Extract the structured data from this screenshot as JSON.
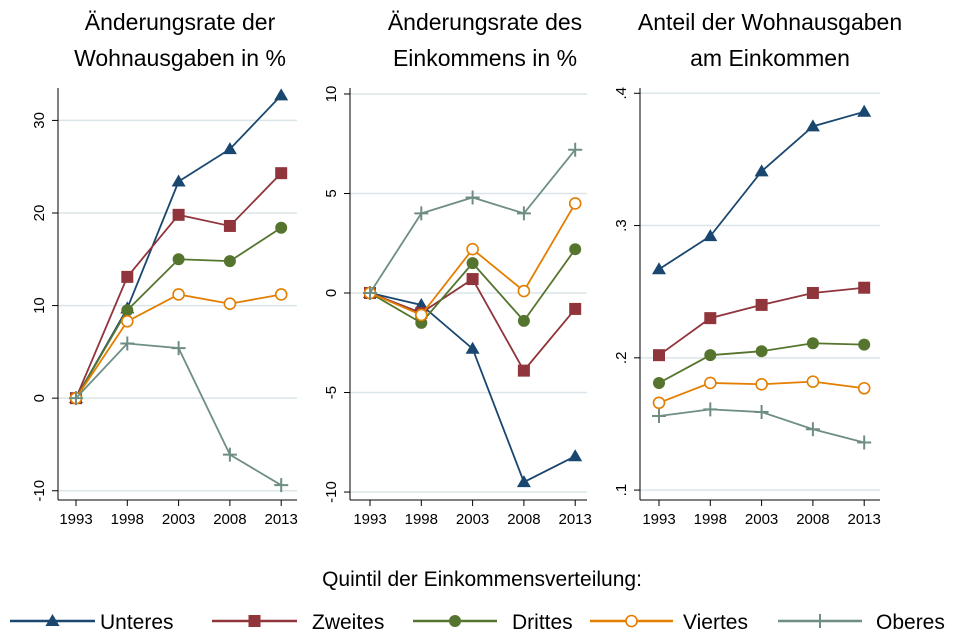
{
  "chart_data": [
    {
      "type": "line",
      "title": [
        "Änderungsrate der",
        "Wohnausgaben in %"
      ],
      "categories": [
        "1993",
        "1998",
        "2003",
        "2008",
        "2013"
      ],
      "ylim": [
        -11,
        33.5
      ],
      "yticks": [
        -10,
        0,
        10,
        20,
        30
      ],
      "grid": true,
      "series": [
        {
          "values": [
            0,
            9.7,
            23.4,
            26.9,
            32.7
          ]
        },
        {
          "values": [
            0,
            13.1,
            19.8,
            18.6,
            24.3
          ]
        },
        {
          "values": [
            0,
            9.5,
            15,
            14.8,
            18.4
          ]
        },
        {
          "values": [
            0,
            8.3,
            11.2,
            10.2,
            11.2
          ]
        },
        {
          "values": [
            0,
            5.9,
            5.4,
            -6.1,
            -9.4
          ]
        }
      ]
    },
    {
      "type": "line",
      "title": [
        "Änderungsrate des",
        "Einkommens in %"
      ],
      "categories": [
        "1993",
        "1998",
        "2003",
        "2008",
        "2013"
      ],
      "ylim": [
        -10.4,
        10.3
      ],
      "yticks": [
        -10,
        -5,
        0,
        5,
        10
      ],
      "grid": true,
      "series": [
        {
          "values": [
            0,
            -0.6,
            -2.8,
            -9.5,
            -8.2
          ]
        },
        {
          "values": [
            0,
            -1,
            0.7,
            -3.9,
            -0.8
          ]
        },
        {
          "values": [
            0,
            -1.5,
            1.5,
            -1.4,
            2.2
          ]
        },
        {
          "values": [
            0,
            -1.1,
            2.2,
            0.1,
            4.5
          ]
        },
        {
          "values": [
            0,
            4,
            4.8,
            4,
            7.2
          ]
        }
      ]
    },
    {
      "type": "line",
      "title": [
        "Anteil der Wohnausgaben",
        "am Einkommen"
      ],
      "categories": [
        "1993",
        "1998",
        "2003",
        "2008",
        "2013"
      ],
      "ylim": [
        0.0925,
        0.404
      ],
      "yticks": [
        {
          "value": 0.1,
          "label": ".1"
        },
        {
          "value": 0.2,
          "label": ".2"
        },
        {
          "value": 0.3,
          "label": ".3"
        },
        {
          "value": 0.4,
          "label": ".4"
        }
      ],
      "grid": true,
      "series": [
        {
          "values": [
            0.267,
            0.292,
            0.341,
            0.375,
            0.386
          ]
        },
        {
          "values": [
            0.202,
            0.23,
            0.24,
            0.249,
            0.253
          ]
        },
        {
          "values": [
            0.181,
            0.202,
            0.205,
            0.211,
            0.21
          ]
        },
        {
          "values": [
            0.166,
            0.181,
            0.18,
            0.182,
            0.177
          ]
        },
        {
          "values": [
            0.156,
            0.161,
            0.159,
            0.146,
            0.136
          ]
        }
      ]
    }
  ],
  "legend": {
    "title": "Quintil der Einkommensverteilung:",
    "series": [
      {
        "name": "Unteres",
        "color": "#1a476f",
        "marker": "triangle"
      },
      {
        "name": "Zweites",
        "color": "#90353b",
        "marker": "square"
      },
      {
        "name": "Drittes",
        "color": "#55752f",
        "marker": "circle"
      },
      {
        "name": "Viertes",
        "color": "#e37e00",
        "marker": "hollow-circle"
      },
      {
        "name": "Oberes",
        "color": "#6e8e84",
        "marker": "plus"
      }
    ]
  }
}
